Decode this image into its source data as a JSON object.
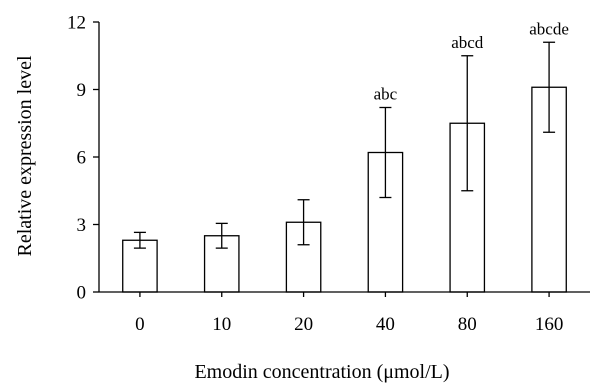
{
  "chart_data": {
    "type": "bar",
    "title": "",
    "xlabel": "Emodin concentration (μmol/L)",
    "ylabel": "Relative expression level",
    "categories": [
      "0",
      "10",
      "20",
      "40",
      "80",
      "160"
    ],
    "values": [
      2.3,
      2.5,
      3.1,
      6.2,
      7.5,
      9.1
    ],
    "error": [
      0.35,
      0.55,
      1.0,
      2.0,
      3.0,
      2.0
    ],
    "annotations": [
      "",
      "",
      "",
      "abc",
      "abcd",
      "abcde"
    ],
    "ylim": [
      0,
      12
    ],
    "yticks": [
      "0",
      "3",
      "6",
      "9",
      "12"
    ],
    "ytick_values": [
      0,
      3,
      6,
      9,
      12
    ],
    "grid": false,
    "bar_fill": "#ffffff",
    "bar_stroke": "#000000"
  }
}
